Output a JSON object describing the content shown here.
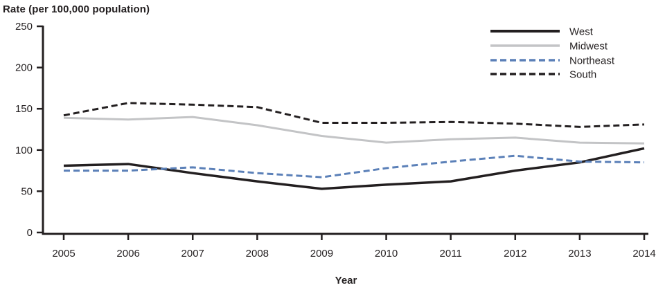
{
  "page": {
    "background": "#ffffff",
    "text_color": "#231f20"
  },
  "chart_data": {
    "type": "line",
    "title": "Rate (per 100,000 population)",
    "xlabel": "Year",
    "ylabel": "Rate (per 100,000 population)",
    "x": [
      2005,
      2006,
      2007,
      2008,
      2009,
      2010,
      2011,
      2012,
      2013,
      2014
    ],
    "ylim": [
      0,
      250
    ],
    "yticks": [
      0,
      50,
      100,
      150,
      200,
      250
    ],
    "grid": false,
    "legend_position": "top-right",
    "series": [
      {
        "name": "West",
        "color": "#231f20",
        "dash": "solid",
        "width": 3.5,
        "values": [
          81,
          83,
          72,
          62,
          53,
          58,
          62,
          75,
          85,
          102
        ]
      },
      {
        "name": "Midwest",
        "color": "#c3c4c6",
        "dash": "solid",
        "width": 3,
        "values": [
          139,
          137,
          140,
          130,
          117,
          109,
          113,
          115,
          109,
          108
        ]
      },
      {
        "name": "Northeast",
        "color": "#5b80b8",
        "dash": "dashed",
        "width": 3,
        "values": [
          75,
          75,
          79,
          72,
          67,
          78,
          86,
          93,
          86,
          85
        ]
      },
      {
        "name": "South",
        "color": "#231f20",
        "dash": "dashed",
        "width": 3,
        "values": [
          142,
          157,
          155,
          152,
          133,
          133,
          134,
          132,
          128,
          131
        ]
      }
    ]
  }
}
